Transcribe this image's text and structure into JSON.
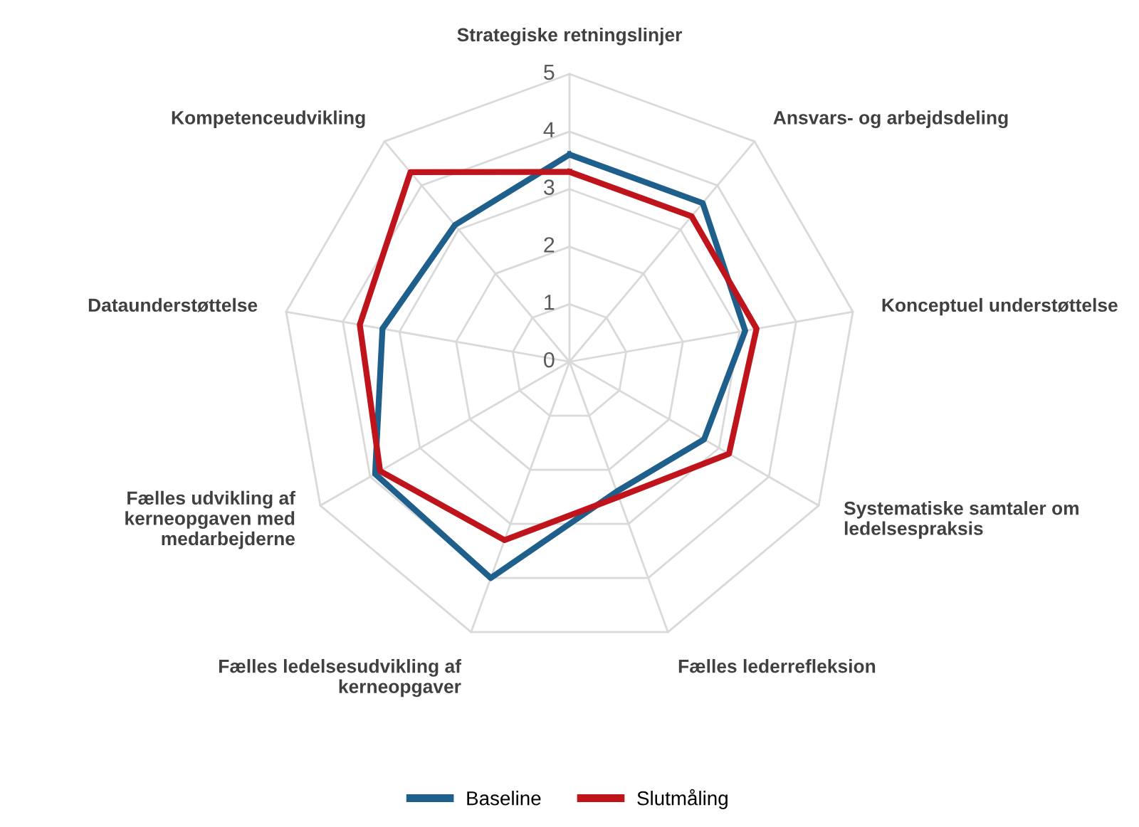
{
  "chart_data": {
    "type": "radar",
    "categories": [
      "Strategiske retningslinjer",
      "Ansvars- og arbejdsdeling",
      "Konceptuel understøttelse",
      "Systematiske samtaler om\nledelsespraksis",
      "Fælles lederrefleksion",
      "Fælles ledelsesudvikling af\nkerneopgaver",
      "Fælles udvikling af\nkerneopgaven med\nmedarbejderne",
      "Dataunderstøttelse",
      "Kompetenceudvikling"
    ],
    "series": [
      {
        "name": "Baseline",
        "color": "#1f5f8b",
        "values": [
          3.6,
          3.6,
          3.1,
          2.7,
          2.4,
          4.0,
          3.9,
          3.3,
          3.1
        ]
      },
      {
        "name": "Slutmåling",
        "color": "#c0141c",
        "values": [
          3.3,
          3.3,
          3.3,
          3.2,
          2.5,
          3.3,
          3.8,
          3.7,
          4.3
        ]
      }
    ],
    "ylim": [
      0,
      5
    ],
    "yticks": [
      0,
      1,
      2,
      3,
      4,
      5
    ],
    "grid": true,
    "legend": "bottom",
    "marker": "none",
    "line_style": "solid"
  }
}
